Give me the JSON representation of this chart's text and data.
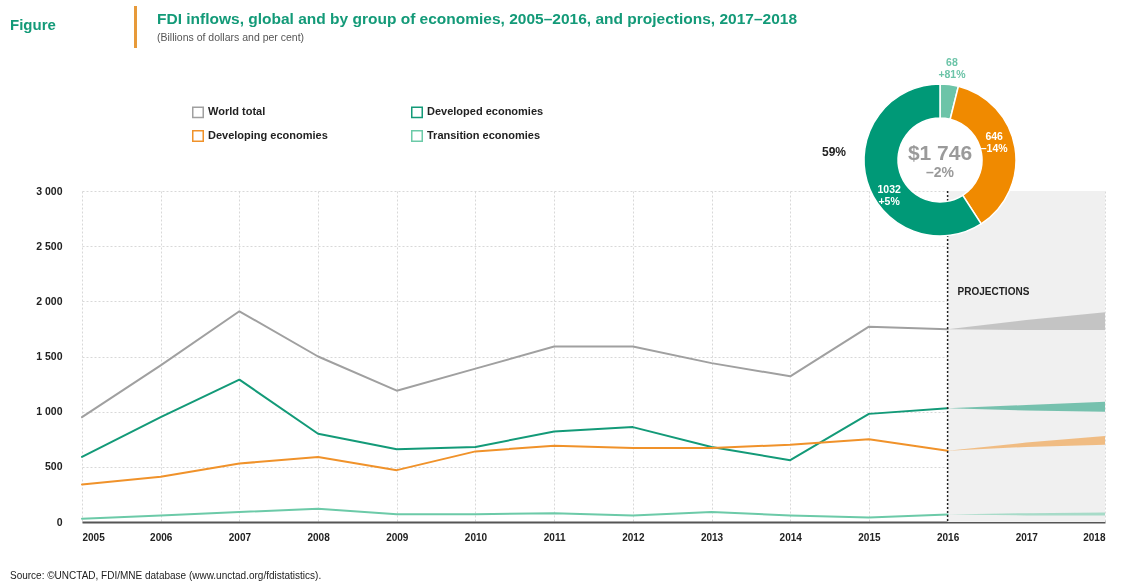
{
  "chart_data": [
    {
      "type": "line",
      "title": "FDI inflows, global and by group of economies, 2005–2016, and projections, 2017–2018",
      "subtitle": "(Billions of dollars and per cent)",
      "x": [
        2005,
        2006,
        2007,
        2008,
        2009,
        2010,
        2011,
        2012,
        2013,
        2014,
        2015,
        2016,
        2017,
        2018
      ],
      "xlim": [
        2005,
        2018
      ],
      "xticks": [
        2005,
        2006,
        2007,
        2008,
        2009,
        2010,
        2011,
        2012,
        2013,
        2014,
        2015,
        2016,
        2017,
        2018
      ],
      "ylim": [
        0,
        3000
      ],
      "yticks": [
        0,
        500,
        {
          "value": 1000,
          "label": "1 000"
        },
        {
          "value": 1500,
          "label": "1 500"
        },
        {
          "value": 2000,
          "label": "2 000"
        },
        {
          "value": 2500,
          "label": "2 500"
        },
        {
          "value": 3000,
          "label": "3 000"
        }
      ],
      "grid": true,
      "legend": "top left",
      "marker": "none",
      "line_style": "solid",
      "series": [
        {
          "name": "World total",
          "color": "#a0a0a0",
          "values": [
            950,
            1420,
            1910,
            1500,
            1190,
            1390,
            1590,
            1590,
            1440,
            1320,
            1770,
            1746,
            null,
            null
          ],
          "lower": [
            null,
            null,
            null,
            null,
            null,
            null,
            null,
            null,
            null,
            null,
            null,
            1746,
            1740,
            1740
          ],
          "upper": [
            null,
            null,
            null,
            null,
            null,
            null,
            null,
            null,
            null,
            null,
            null,
            1746,
            1830,
            1900
          ]
        },
        {
          "name": "Developed economies",
          "color": "#139a78",
          "values": [
            590,
            950,
            1290,
            800,
            660,
            680,
            820,
            860,
            680,
            560,
            980,
            1032,
            null,
            null
          ],
          "lower": [
            null,
            null,
            null,
            null,
            null,
            null,
            null,
            null,
            null,
            null,
            null,
            1032,
            1010,
            1000
          ],
          "upper": [
            null,
            null,
            null,
            null,
            null,
            null,
            null,
            null,
            null,
            null,
            null,
            1032,
            1060,
            1090
          ]
        },
        {
          "name": "Developing economies",
          "color": "#f0922a",
          "values": [
            340,
            410,
            530,
            590,
            470,
            640,
            690,
            670,
            670,
            700,
            750,
            646,
            null,
            null
          ],
          "lower": [
            null,
            null,
            null,
            null,
            null,
            null,
            null,
            null,
            null,
            null,
            null,
            646,
            680,
            700
          ],
          "upper": [
            null,
            null,
            null,
            null,
            null,
            null,
            null,
            null,
            null,
            null,
            null,
            646,
            720,
            780
          ]
        },
        {
          "name": "Transition economies",
          "color": "#6ccaa8",
          "values": [
            30,
            60,
            90,
            120,
            70,
            70,
            80,
            60,
            90,
            60,
            40,
            68,
            null,
            null
          ],
          "lower": [
            null,
            null,
            null,
            null,
            null,
            null,
            null,
            null,
            null,
            null,
            null,
            68,
            60,
            60
          ],
          "upper": [
            null,
            null,
            null,
            null,
            null,
            null,
            null,
            null,
            null,
            null,
            null,
            68,
            80,
            85
          ]
        }
      ],
      "bands": [
        {
          "axis": "x",
          "from": 2016,
          "to": 2018,
          "color": "#f0f0f0"
        }
      ],
      "ref_lines": [
        {
          "axis": "x",
          "value": 2016,
          "label": "PROJECTIONS",
          "line_style": "dotted",
          "color": "#222222"
        }
      ],
      "annotations": [
        "Figure",
        "Source: ©UNCTAD, FDI/MNE database (www.unctad.org/fdistatistics)."
      ]
    },
    {
      "type": "donut",
      "categories": [
        null,
        null,
        null
      ],
      "values": [
        68,
        646,
        1032
      ],
      "colors": [
        "#6cc4a8",
        "#f08a00",
        "#009977"
      ],
      "value_labels": [
        "68 +81%",
        "646 –14%",
        "1032 +5%"
      ],
      "legend": false,
      "annotations": [
        "59%",
        "$1 746",
        "–2%"
      ]
    }
  ]
}
